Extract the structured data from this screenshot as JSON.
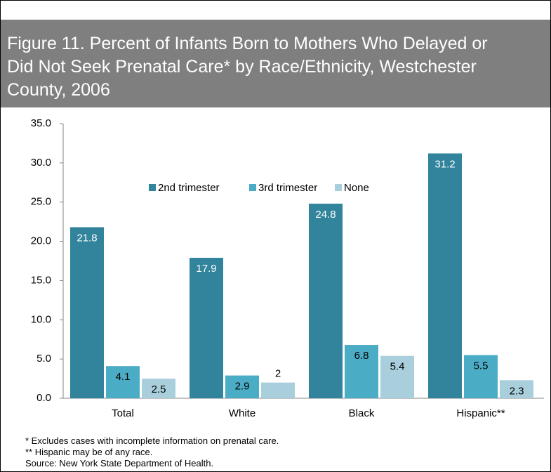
{
  "chart_data": {
    "type": "bar",
    "title": [
      "Figure 11. Percent of Infants Born to Mothers Who Delayed or",
      "Did Not Seek Prenatal Care* by Race/Ethnicity, Westchester",
      "County, 2006"
    ],
    "categories": [
      "Total",
      "White",
      "Black",
      "Hispanic**"
    ],
    "series": [
      {
        "name": "2nd trimester",
        "color": "#31849b",
        "values": [
          21.8,
          17.9,
          24.8,
          31.2
        ]
      },
      {
        "name": "3rd trimester",
        "color": "#4bacc6",
        "values": [
          4.1,
          2.9,
          6.8,
          5.5
        ]
      },
      {
        "name": "None",
        "color": "#a9cfdd",
        "values": [
          2.5,
          2.0,
          5.4,
          2.3
        ]
      }
    ],
    "ylim": [
      0,
      35
    ],
    "yticks": [
      {
        "value": 0,
        "label": "0.0"
      },
      {
        "value": 5,
        "label": "5.0"
      },
      {
        "value": 10,
        "label": "10.0"
      },
      {
        "value": 15,
        "label": "15.0"
      },
      {
        "value": 20,
        "label": "20.0"
      },
      {
        "value": 25,
        "label": "25.0"
      },
      {
        "value": 30,
        "label": "30.0"
      },
      {
        "value": 35,
        "label": "35.0"
      }
    ],
    "grid": false,
    "legend": "top",
    "notes": [
      "* Excludes cases with incomplete information on prenatal care.",
      "** Hispanic may be of any race.",
      "Source: New York State Department of Health."
    ]
  }
}
